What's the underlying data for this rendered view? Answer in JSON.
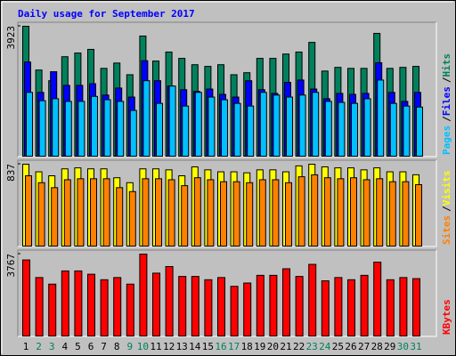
{
  "chart_data": [
    {
      "type": "bar",
      "title": "Daily usage for September 2017",
      "legend_separator": "/",
      "ylim": [
        0,
        3923
      ],
      "yticks": [
        3923
      ],
      "series": [
        {
          "name": "Hits",
          "color": "#00805c",
          "values": [
            3923,
            2610,
            2290,
            3010,
            3120,
            3230,
            2660,
            2820,
            2470,
            3630,
            2880,
            3150,
            2960,
            2770,
            2720,
            2770,
            2470,
            2530,
            2960,
            2960,
            3090,
            3150,
            3440,
            2580,
            2690,
            2660,
            2660,
            3710,
            2660,
            2690,
            2720
          ]
        },
        {
          "name": "Files",
          "color": "#0000ff",
          "values": [
            2850,
            1940,
            2560,
            2150,
            2150,
            2200,
            1860,
            2070,
            1800,
            2890,
            2290,
            2130,
            2020,
            1970,
            2040,
            1880,
            1800,
            2290,
            2020,
            1910,
            2240,
            2310,
            2040,
            1750,
            1910,
            1880,
            1910,
            2830,
            1940,
            1670,
            1940
          ]
        },
        {
          "name": "Pages",
          "color": "#00c0ff",
          "values": [
            1940,
            1690,
            1750,
            1670,
            1670,
            1820,
            1720,
            1670,
            1400,
            2290,
            1610,
            2130,
            1530,
            1940,
            1800,
            1720,
            1610,
            1530,
            1940,
            1860,
            1800,
            1860,
            1940,
            1670,
            1640,
            1610,
            1750,
            2310,
            1610,
            1530,
            1500
          ]
        }
      ]
    },
    {
      "type": "bar",
      "legend_separator": "/",
      "ylim": [
        0,
        837
      ],
      "yticks": [
        837
      ],
      "series": [
        {
          "name": "Visits",
          "color": "#ffff00",
          "values": [
            837,
            760,
            720,
            790,
            800,
            790,
            790,
            700,
            650,
            790,
            790,
            780,
            720,
            810,
            780,
            760,
            760,
            750,
            780,
            780,
            760,
            820,
            837,
            810,
            800,
            800,
            780,
            800,
            760,
            760,
            730
          ]
        },
        {
          "name": "Sites",
          "color": "#ff8000",
          "values": [
            720,
            650,
            600,
            680,
            690,
            690,
            690,
            600,
            560,
            690,
            690,
            680,
            620,
            700,
            680,
            660,
            660,
            650,
            680,
            680,
            650,
            710,
            730,
            700,
            690,
            700,
            680,
            690,
            660,
            660,
            630
          ]
        }
      ]
    },
    {
      "type": "bar",
      "ylim": [
        0,
        3767
      ],
      "yticks": [
        3767
      ],
      "categories": [
        "1",
        "2",
        "3",
        "4",
        "5",
        "6",
        "7",
        "8",
        "9",
        "10",
        "11",
        "12",
        "13",
        "14",
        "15",
        "16",
        "17",
        "18",
        "19",
        "20",
        "21",
        "22",
        "23",
        "24",
        "25",
        "26",
        "27",
        "28",
        "29",
        "30",
        "31"
      ],
      "weekend_indices": [
        1,
        2,
        8,
        9,
        15,
        16,
        22,
        23,
        29,
        30
      ],
      "weekday_color": "#000000",
      "weekend_color": "#00805c",
      "series": [
        {
          "name": "KBytes",
          "color": "#ff0000",
          "values": [
            3500,
            2700,
            2400,
            3000,
            3000,
            2850,
            2600,
            2700,
            2400,
            3767,
            2900,
            3200,
            2750,
            2750,
            2600,
            2700,
            2300,
            2450,
            2800,
            2800,
            3100,
            2750,
            3300,
            2550,
            2700,
            2600,
            2800,
            3400,
            2600,
            2700,
            2650
          ]
        }
      ]
    }
  ]
}
